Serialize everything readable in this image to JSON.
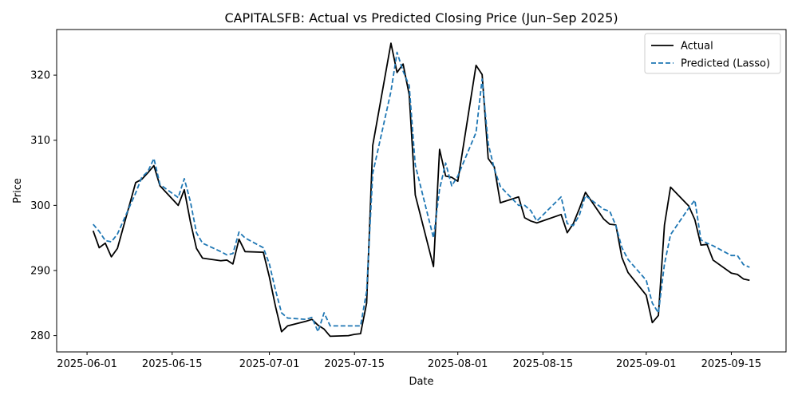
{
  "chart_data": {
    "type": "line",
    "title": "CAPITALSFB: Actual vs Predicted Closing Price (Jun–Sep 2025)",
    "xlabel": "Date",
    "ylabel": "Price",
    "xlim": [
      "2025-05-27",
      "2025-09-24"
    ],
    "ylim": [
      277.5,
      327.0
    ],
    "x_ticks": [
      "2025-06-01",
      "2025-06-15",
      "2025-07-01",
      "2025-07-15",
      "2025-08-01",
      "2025-08-15",
      "2025-09-01",
      "2025-09-15"
    ],
    "y_ticks": [
      280,
      290,
      300,
      310,
      320
    ],
    "legend_position": "top-right",
    "grid": false,
    "series": [
      {
        "name": "Actual",
        "color": "#000000",
        "style": "solid",
        "points": [
          [
            "2025-06-02",
            296.1
          ],
          [
            "2025-06-03",
            293.5
          ],
          [
            "2025-06-04",
            294.2
          ],
          [
            "2025-06-05",
            292.1
          ],
          [
            "2025-06-06",
            293.4
          ],
          [
            "2025-06-09",
            303.5
          ],
          [
            "2025-06-10",
            304.0
          ],
          [
            "2025-06-11",
            305.0
          ],
          [
            "2025-06-12",
            306.1
          ],
          [
            "2025-06-13",
            303.0
          ],
          [
            "2025-06-16",
            300.0
          ],
          [
            "2025-06-17",
            302.4
          ],
          [
            "2025-06-18",
            297.5
          ],
          [
            "2025-06-19",
            293.4
          ],
          [
            "2025-06-20",
            291.9
          ],
          [
            "2025-06-23",
            291.5
          ],
          [
            "2025-06-24",
            291.6
          ],
          [
            "2025-06-25",
            291.0
          ],
          [
            "2025-06-26",
            294.8
          ],
          [
            "2025-06-27",
            292.9
          ],
          [
            "2025-06-30",
            292.8
          ],
          [
            "2025-07-01",
            289.0
          ],
          [
            "2025-07-02",
            284.5
          ],
          [
            "2025-07-03",
            280.6
          ],
          [
            "2025-07-04",
            281.5
          ],
          [
            "2025-07-07",
            282.2
          ],
          [
            "2025-07-08",
            282.5
          ],
          [
            "2025-07-09",
            281.6
          ],
          [
            "2025-07-10",
            281.0
          ],
          [
            "2025-07-11",
            279.9
          ],
          [
            "2025-07-14",
            280.0
          ],
          [
            "2025-07-15",
            280.2
          ],
          [
            "2025-07-16",
            280.3
          ],
          [
            "2025-07-17",
            285.0
          ],
          [
            "2025-07-18",
            309.2
          ],
          [
            "2025-07-21",
            324.9
          ],
          [
            "2025-07-22",
            320.4
          ],
          [
            "2025-07-23",
            321.7
          ],
          [
            "2025-07-24",
            317.0
          ],
          [
            "2025-07-25",
            301.6
          ],
          [
            "2025-07-28",
            290.6
          ],
          [
            "2025-07-29",
            308.6
          ],
          [
            "2025-07-30",
            304.5
          ],
          [
            "2025-07-31",
            304.3
          ],
          [
            "2025-08-01",
            303.7
          ],
          [
            "2025-08-04",
            321.5
          ],
          [
            "2025-08-05",
            320.1
          ],
          [
            "2025-08-06",
            307.2
          ],
          [
            "2025-08-07",
            305.9
          ],
          [
            "2025-08-08",
            300.4
          ],
          [
            "2025-08-11",
            301.3
          ],
          [
            "2025-08-12",
            298.1
          ],
          [
            "2025-08-13",
            297.6
          ],
          [
            "2025-08-14",
            297.3
          ],
          [
            "2025-08-18",
            298.6
          ],
          [
            "2025-08-19",
            295.8
          ],
          [
            "2025-08-20",
            297.2
          ],
          [
            "2025-08-21",
            299.5
          ],
          [
            "2025-08-22",
            302.0
          ],
          [
            "2025-08-25",
            297.9
          ],
          [
            "2025-08-26",
            297.1
          ],
          [
            "2025-08-27",
            297.0
          ],
          [
            "2025-08-28",
            292.0
          ],
          [
            "2025-08-29",
            289.7
          ],
          [
            "2025-09-01",
            286.2
          ],
          [
            "2025-09-02",
            282.0
          ],
          [
            "2025-09-03",
            283.1
          ],
          [
            "2025-09-04",
            297.0
          ],
          [
            "2025-09-05",
            302.8
          ],
          [
            "2025-09-08",
            299.9
          ],
          [
            "2025-09-09",
            297.8
          ],
          [
            "2025-09-10",
            293.9
          ],
          [
            "2025-09-11",
            294.0
          ],
          [
            "2025-09-12",
            291.6
          ],
          [
            "2025-09-15",
            289.6
          ],
          [
            "2025-09-16",
            289.4
          ],
          [
            "2025-09-17",
            288.7
          ],
          [
            "2025-09-18",
            288.5
          ]
        ]
      },
      {
        "name": "Predicted (Lasso)",
        "color": "#1f77b4",
        "style": "dashed",
        "points": [
          [
            "2025-06-02",
            297.1
          ],
          [
            "2025-06-03",
            296.0
          ],
          [
            "2025-06-04",
            294.6
          ],
          [
            "2025-06-05",
            294.4
          ],
          [
            "2025-06-06",
            295.6
          ],
          [
            "2025-06-09",
            301.9
          ],
          [
            "2025-06-10",
            304.3
          ],
          [
            "2025-06-11",
            305.2
          ],
          [
            "2025-06-12",
            307.2
          ],
          [
            "2025-06-13",
            303.2
          ],
          [
            "2025-06-16",
            301.2
          ],
          [
            "2025-06-17",
            304.1
          ],
          [
            "2025-06-18",
            300.6
          ],
          [
            "2025-06-19",
            295.8
          ],
          [
            "2025-06-20",
            294.2
          ],
          [
            "2025-06-23",
            292.9
          ],
          [
            "2025-06-24",
            292.4
          ],
          [
            "2025-06-25",
            292.6
          ],
          [
            "2025-06-26",
            295.9
          ],
          [
            "2025-06-27",
            295.0
          ],
          [
            "2025-06-30",
            293.5
          ],
          [
            "2025-07-01",
            291.0
          ],
          [
            "2025-07-02",
            287.0
          ],
          [
            "2025-07-03",
            283.5
          ],
          [
            "2025-07-04",
            282.7
          ],
          [
            "2025-07-07",
            282.5
          ],
          [
            "2025-07-08",
            282.8
          ],
          [
            "2025-07-09",
            280.6
          ],
          [
            "2025-07-10",
            283.5
          ],
          [
            "2025-07-11",
            281.5
          ],
          [
            "2025-07-14",
            281.5
          ],
          [
            "2025-07-15",
            281.5
          ],
          [
            "2025-07-16",
            281.5
          ],
          [
            "2025-07-17",
            286.8
          ],
          [
            "2025-07-18",
            304.9
          ],
          [
            "2025-07-21",
            317.5
          ],
          [
            "2025-07-22",
            323.5
          ],
          [
            "2025-07-23",
            320.6
          ],
          [
            "2025-07-24",
            318.4
          ],
          [
            "2025-07-25",
            306.2
          ],
          [
            "2025-07-28",
            295.0
          ],
          [
            "2025-07-29",
            302.5
          ],
          [
            "2025-07-30",
            306.5
          ],
          [
            "2025-07-31",
            303.0
          ],
          [
            "2025-08-01",
            304.5
          ],
          [
            "2025-08-04",
            311.2
          ],
          [
            "2025-08-05",
            319.4
          ],
          [
            "2025-08-06",
            309.5
          ],
          [
            "2025-08-07",
            305.6
          ],
          [
            "2025-08-08",
            302.9
          ],
          [
            "2025-08-11",
            300.0
          ],
          [
            "2025-08-12",
            300.0
          ],
          [
            "2025-08-13",
            299.2
          ],
          [
            "2025-08-14",
            297.6
          ],
          [
            "2025-08-18",
            301.3
          ],
          [
            "2025-08-19",
            297.2
          ],
          [
            "2025-08-20",
            296.9
          ],
          [
            "2025-08-21",
            298.5
          ],
          [
            "2025-08-22",
            301.5
          ],
          [
            "2025-08-25",
            299.4
          ],
          [
            "2025-08-26",
            299.1
          ],
          [
            "2025-08-27",
            296.9
          ],
          [
            "2025-08-28",
            293.5
          ],
          [
            "2025-08-29",
            291.7
          ],
          [
            "2025-09-01",
            288.5
          ],
          [
            "2025-09-02",
            285.0
          ],
          [
            "2025-09-03",
            283.5
          ],
          [
            "2025-09-04",
            291.0
          ],
          [
            "2025-09-05",
            295.5
          ],
          [
            "2025-09-08",
            299.6
          ],
          [
            "2025-09-09",
            300.8
          ],
          [
            "2025-09-10",
            294.7
          ],
          [
            "2025-09-11",
            294.2
          ],
          [
            "2025-09-12",
            293.8
          ],
          [
            "2025-09-15",
            292.3
          ],
          [
            "2025-09-16",
            292.3
          ],
          [
            "2025-09-17",
            290.9
          ],
          [
            "2025-09-18",
            290.5
          ]
        ]
      }
    ]
  }
}
